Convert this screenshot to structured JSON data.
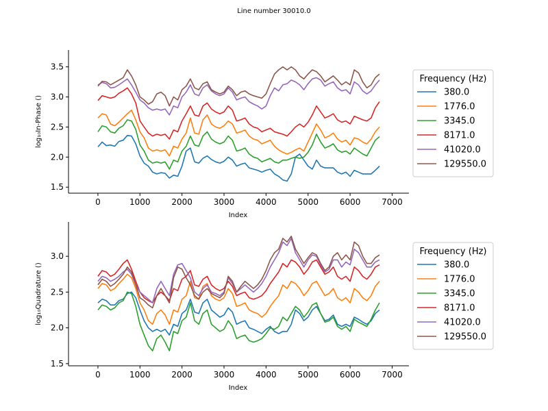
{
  "figure": {
    "title": "Line number 30010.0"
  },
  "chart_data": [
    {
      "type": "line",
      "xlabel": "Index",
      "ylabel": "log₁₀In-Phase ()",
      "xlim": [
        -700,
        7400
      ],
      "ylim": [
        1.4,
        3.78
      ],
      "xticks": [
        0,
        1000,
        2000,
        3000,
        4000,
        5000,
        6000,
        7000
      ],
      "yticks": [
        1.5,
        2.0,
        2.5,
        3.0,
        3.5
      ],
      "legend": {
        "title": "Frequency (Hz)",
        "placement": "outside-right"
      },
      "x": [
        0,
        100,
        200,
        300,
        400,
        500,
        600,
        700,
        800,
        900,
        1000,
        1100,
        1200,
        1300,
        1400,
        1500,
        1600,
        1700,
        1800,
        1900,
        2000,
        2100,
        2200,
        2300,
        2400,
        2500,
        2600,
        2700,
        2800,
        2900,
        3000,
        3100,
        3200,
        3300,
        3400,
        3500,
        3600,
        3700,
        3800,
        3900,
        4000,
        4100,
        4200,
        4300,
        4400,
        4500,
        4600,
        4700,
        4800,
        4900,
        5000,
        5100,
        5200,
        5300,
        5400,
        5500,
        5600,
        5700,
        5800,
        5900,
        6000,
        6100,
        6200,
        6300,
        6400,
        6500,
        6600,
        6700
      ],
      "series": [
        {
          "name": "380.0",
          "color": "#1f77b4",
          "values": [
            2.17,
            2.25,
            2.19,
            2.2,
            2.18,
            2.26,
            2.28,
            2.36,
            2.35,
            2.22,
            2.02,
            1.9,
            1.85,
            1.75,
            1.72,
            1.74,
            1.73,
            1.65,
            1.7,
            1.68,
            1.85,
            2.1,
            2.15,
            1.92,
            1.9,
            1.98,
            2.02,
            1.96,
            1.92,
            1.9,
            1.93,
            2.0,
            1.95,
            1.85,
            1.88,
            1.9,
            1.82,
            1.8,
            1.78,
            1.75,
            1.78,
            1.8,
            1.72,
            1.68,
            1.62,
            1.6,
            1.72,
            2.0,
            2.05,
            1.95,
            1.85,
            1.8,
            1.95,
            1.85,
            1.82,
            1.82,
            1.82,
            1.75,
            1.72,
            1.75,
            1.68,
            1.78,
            1.75,
            1.72,
            1.72,
            1.72,
            1.78,
            1.85
          ]
        },
        {
          "name": "1776.0",
          "color": "#ff7f0e",
          "values": [
            2.65,
            2.72,
            2.7,
            2.55,
            2.52,
            2.58,
            2.65,
            2.72,
            2.78,
            2.62,
            2.42,
            2.32,
            2.15,
            2.1,
            2.12,
            2.1,
            2.12,
            2.02,
            2.18,
            2.15,
            2.3,
            2.4,
            2.65,
            2.4,
            2.38,
            2.62,
            2.7,
            2.55,
            2.5,
            2.48,
            2.52,
            2.6,
            2.55,
            2.4,
            2.42,
            2.45,
            2.35,
            2.3,
            2.28,
            2.22,
            2.25,
            2.28,
            2.18,
            2.12,
            2.08,
            2.05,
            2.08,
            2.12,
            2.15,
            2.1,
            2.25,
            2.4,
            2.55,
            2.45,
            2.32,
            2.35,
            2.4,
            2.3,
            2.25,
            2.28,
            2.2,
            2.32,
            2.3,
            2.25,
            2.22,
            2.3,
            2.42,
            2.5
          ]
        },
        {
          "name": "3345.0",
          "color": "#2ca02c",
          "values": [
            2.42,
            2.52,
            2.5,
            2.42,
            2.4,
            2.48,
            2.52,
            2.62,
            2.6,
            2.46,
            2.2,
            2.1,
            1.95,
            1.9,
            1.92,
            1.9,
            1.92,
            1.8,
            1.95,
            1.92,
            2.1,
            2.18,
            2.35,
            2.2,
            2.18,
            2.35,
            2.42,
            2.3,
            2.25,
            2.22,
            2.25,
            2.35,
            2.28,
            2.1,
            2.12,
            2.15,
            2.05,
            2.0,
            1.98,
            1.92,
            1.95,
            1.98,
            1.92,
            1.9,
            1.95,
            1.95,
            1.98,
            2.0,
            1.98,
            2.0,
            2.08,
            2.2,
            2.38,
            2.25,
            2.15,
            2.18,
            2.22,
            2.12,
            2.08,
            2.1,
            2.05,
            2.15,
            2.1,
            2.05,
            2.02,
            2.15,
            2.28,
            2.34
          ]
        },
        {
          "name": "8171.0",
          "color": "#d62728",
          "values": [
            2.94,
            3.02,
            3.0,
            2.98,
            3.0,
            3.06,
            3.1,
            3.15,
            3.05,
            2.9,
            2.6,
            2.5,
            2.4,
            2.35,
            2.38,
            2.36,
            2.38,
            2.3,
            2.45,
            2.42,
            2.6,
            2.72,
            2.85,
            2.7,
            2.68,
            2.85,
            2.9,
            2.8,
            2.75,
            2.72,
            2.75,
            2.85,
            2.78,
            2.6,
            2.62,
            2.65,
            2.55,
            2.5,
            2.48,
            2.42,
            2.45,
            2.48,
            2.42,
            2.4,
            2.38,
            2.35,
            2.42,
            2.5,
            2.55,
            2.5,
            2.58,
            2.7,
            2.85,
            2.75,
            2.65,
            2.68,
            2.72,
            2.62,
            2.58,
            2.6,
            2.55,
            2.68,
            2.65,
            2.62,
            2.6,
            2.65,
            2.82,
            2.92
          ]
        },
        {
          "name": "41020.0",
          "color": "#9467bd",
          "values": [
            3.2,
            3.24,
            3.22,
            3.15,
            3.16,
            3.2,
            3.25,
            3.3,
            3.2,
            3.08,
            2.95,
            2.9,
            2.82,
            2.78,
            2.8,
            2.78,
            2.8,
            2.7,
            2.85,
            2.82,
            3.0,
            3.08,
            3.2,
            3.05,
            3.02,
            3.15,
            3.2,
            3.1,
            3.05,
            3.02,
            3.05,
            3.15,
            3.08,
            2.95,
            2.98,
            3.0,
            2.92,
            2.88,
            2.85,
            2.8,
            2.85,
            3.02,
            3.15,
            3.1,
            3.2,
            3.22,
            3.28,
            3.25,
            3.2,
            3.12,
            3.22,
            3.3,
            3.32,
            3.28,
            3.18,
            3.22,
            3.25,
            3.15,
            3.1,
            3.12,
            3.05,
            3.25,
            3.2,
            3.1,
            3.05,
            3.1,
            3.2,
            3.28
          ]
        },
        {
          "name": "129550.0",
          "color": "#8c564b",
          "values": [
            3.18,
            3.26,
            3.25,
            3.2,
            3.24,
            3.28,
            3.32,
            3.45,
            3.35,
            3.2,
            3.0,
            2.95,
            2.88,
            2.92,
            3.05,
            3.08,
            3.02,
            2.85,
            3.0,
            2.95,
            3.12,
            3.18,
            3.3,
            3.15,
            3.12,
            3.22,
            3.25,
            3.12,
            3.08,
            3.05,
            3.08,
            3.18,
            3.12,
            3.02,
            3.08,
            3.1,
            3.05,
            3.02,
            3.0,
            2.98,
            3.05,
            3.22,
            3.38,
            3.45,
            3.5,
            3.45,
            3.5,
            3.45,
            3.35,
            3.3,
            3.38,
            3.45,
            3.42,
            3.35,
            3.25,
            3.3,
            3.35,
            3.28,
            3.2,
            3.25,
            3.2,
            3.45,
            3.4,
            3.25,
            3.15,
            3.2,
            3.32,
            3.38
          ]
        }
      ]
    },
    {
      "type": "line",
      "xlabel": "Index",
      "ylabel": "log₁₀Quadrature ()",
      "xlim": [
        -700,
        7400
      ],
      "ylim": [
        1.47,
        3.48
      ],
      "xticks": [
        0,
        1000,
        2000,
        3000,
        4000,
        5000,
        6000,
        7000
      ],
      "yticks": [
        1.5,
        2.0,
        2.5,
        3.0
      ],
      "legend": {
        "title": "Frequency (Hz)",
        "placement": "outside-right"
      },
      "x": [
        0,
        100,
        200,
        300,
        400,
        500,
        600,
        700,
        800,
        900,
        1000,
        1100,
        1200,
        1300,
        1400,
        1500,
        1600,
        1700,
        1800,
        1900,
        2000,
        2100,
        2200,
        2300,
        2400,
        2500,
        2600,
        2700,
        2800,
        2900,
        3000,
        3100,
        3200,
        3300,
        3400,
        3500,
        3600,
        3700,
        3800,
        3900,
        4000,
        4100,
        4200,
        4300,
        4400,
        4500,
        4600,
        4700,
        4800,
        4900,
        5000,
        5100,
        5200,
        5300,
        5400,
        5500,
        5600,
        5700,
        5800,
        5900,
        6000,
        6100,
        6200,
        6300,
        6400,
        6500,
        6600,
        6700
      ],
      "series": [
        {
          "name": "380.0",
          "color": "#1f77b4",
          "values": [
            2.35,
            2.4,
            2.38,
            2.32,
            2.32,
            2.38,
            2.4,
            2.48,
            2.5,
            2.42,
            2.25,
            2.1,
            2.0,
            1.95,
            1.98,
            1.95,
            1.98,
            1.9,
            2.05,
            2.02,
            2.2,
            2.25,
            2.4,
            2.22,
            2.2,
            2.35,
            2.4,
            2.25,
            2.2,
            2.15,
            2.18,
            2.28,
            2.22,
            2.05,
            2.08,
            2.1,
            2.0,
            1.98,
            1.95,
            1.92,
            1.98,
            2.02,
            1.95,
            1.92,
            1.95,
            1.95,
            2.05,
            2.25,
            2.2,
            2.1,
            2.15,
            2.25,
            2.3,
            2.2,
            2.1,
            2.12,
            2.18,
            2.05,
            2.02,
            2.05,
            2.02,
            2.15,
            2.12,
            2.08,
            2.05,
            2.1,
            2.2,
            2.25
          ]
        },
        {
          "name": "1776.0",
          "color": "#ff7f0e",
          "values": [
            2.55,
            2.62,
            2.6,
            2.52,
            2.55,
            2.62,
            2.68,
            2.75,
            2.7,
            2.55,
            2.35,
            2.25,
            2.1,
            2.05,
            2.2,
            2.25,
            2.18,
            2.05,
            2.25,
            2.22,
            2.4,
            2.45,
            2.65,
            2.42,
            2.4,
            2.58,
            2.62,
            2.45,
            2.4,
            2.38,
            2.42,
            2.55,
            2.48,
            2.3,
            2.32,
            2.35,
            2.25,
            2.22,
            2.2,
            2.15,
            2.2,
            2.3,
            2.38,
            2.45,
            2.6,
            2.55,
            2.65,
            2.62,
            2.55,
            2.45,
            2.52,
            2.62,
            2.65,
            2.55,
            2.45,
            2.48,
            2.55,
            2.42,
            2.38,
            2.42,
            2.35,
            2.55,
            2.5,
            2.42,
            2.38,
            2.45,
            2.58,
            2.65
          ]
        },
        {
          "name": "3345.0",
          "color": "#2ca02c",
          "values": [
            2.25,
            2.32,
            2.3,
            2.25,
            2.28,
            2.35,
            2.38,
            2.5,
            2.48,
            2.3,
            2.05,
            1.9,
            1.75,
            1.68,
            1.85,
            1.9,
            1.8,
            1.68,
            1.95,
            1.92,
            2.1,
            2.15,
            2.35,
            2.1,
            2.05,
            2.2,
            2.25,
            2.05,
            2.0,
            1.95,
            1.98,
            2.1,
            2.02,
            1.85,
            1.88,
            1.9,
            1.82,
            1.8,
            1.82,
            1.85,
            1.92,
            2.0,
            1.98,
            2.02,
            2.15,
            2.1,
            2.2,
            2.3,
            2.25,
            2.15,
            2.22,
            2.32,
            2.35,
            2.2,
            2.08,
            2.1,
            2.15,
            2.02,
            1.98,
            2.02,
            1.95,
            2.12,
            2.08,
            2.05,
            2.02,
            2.12,
            2.25,
            2.35
          ]
        },
        {
          "name": "8171.0",
          "color": "#d62728",
          "values": [
            2.72,
            2.8,
            2.78,
            2.72,
            2.75,
            2.82,
            2.9,
            2.95,
            2.82,
            2.65,
            2.5,
            2.42,
            2.38,
            2.35,
            2.45,
            2.5,
            2.45,
            2.38,
            2.55,
            2.52,
            2.68,
            2.72,
            2.8,
            2.6,
            2.58,
            2.68,
            2.72,
            2.6,
            2.55,
            2.52,
            2.55,
            2.65,
            2.58,
            2.45,
            2.48,
            2.5,
            2.42,
            2.4,
            2.42,
            2.45,
            2.52,
            2.62,
            2.7,
            2.78,
            2.9,
            2.85,
            2.95,
            2.92,
            2.85,
            2.75,
            2.82,
            2.92,
            2.95,
            2.85,
            2.75,
            2.78,
            2.85,
            2.72,
            2.68,
            2.72,
            2.65,
            2.85,
            2.8,
            2.72,
            2.68,
            2.75,
            2.85,
            2.88
          ]
        },
        {
          "name": "41020.0",
          "color": "#9467bd",
          "values": [
            2.65,
            2.72,
            2.7,
            2.65,
            2.68,
            2.72,
            2.78,
            2.82,
            2.75,
            2.6,
            2.5,
            2.45,
            2.4,
            2.35,
            2.55,
            2.65,
            2.55,
            2.45,
            2.75,
            2.88,
            2.9,
            2.8,
            2.7,
            2.5,
            2.45,
            2.55,
            2.6,
            2.5,
            2.48,
            2.45,
            2.5,
            2.7,
            2.62,
            2.5,
            2.55,
            2.6,
            2.55,
            2.5,
            2.55,
            2.62,
            2.72,
            2.85,
            2.95,
            3.05,
            3.2,
            3.15,
            3.25,
            3.05,
            2.95,
            2.85,
            2.95,
            3.02,
            3.0,
            2.88,
            2.78,
            2.82,
            2.95,
            2.95,
            2.85,
            2.92,
            2.88,
            3.1,
            3.05,
            2.95,
            2.85,
            2.85,
            2.92,
            2.95
          ]
        },
        {
          "name": "129550.0",
          "color": "#8c564b",
          "values": [
            2.6,
            2.68,
            2.65,
            2.58,
            2.62,
            2.68,
            2.75,
            2.85,
            2.78,
            2.6,
            2.42,
            2.38,
            2.32,
            2.28,
            2.45,
            2.55,
            2.45,
            2.35,
            2.7,
            2.85,
            2.82,
            2.7,
            2.6,
            2.45,
            2.4,
            2.5,
            2.55,
            2.48,
            2.45,
            2.42,
            2.48,
            2.72,
            2.65,
            2.5,
            2.58,
            2.65,
            2.6,
            2.55,
            2.6,
            2.68,
            2.8,
            2.95,
            3.05,
            3.1,
            3.25,
            3.2,
            3.28,
            3.1,
            3.0,
            2.9,
            2.98,
            3.05,
            3.02,
            2.9,
            2.8,
            2.85,
            3.0,
            3.05,
            2.95,
            3.02,
            2.95,
            3.2,
            3.15,
            3.0,
            2.9,
            2.9,
            2.98,
            3.02
          ]
        }
      ]
    }
  ]
}
